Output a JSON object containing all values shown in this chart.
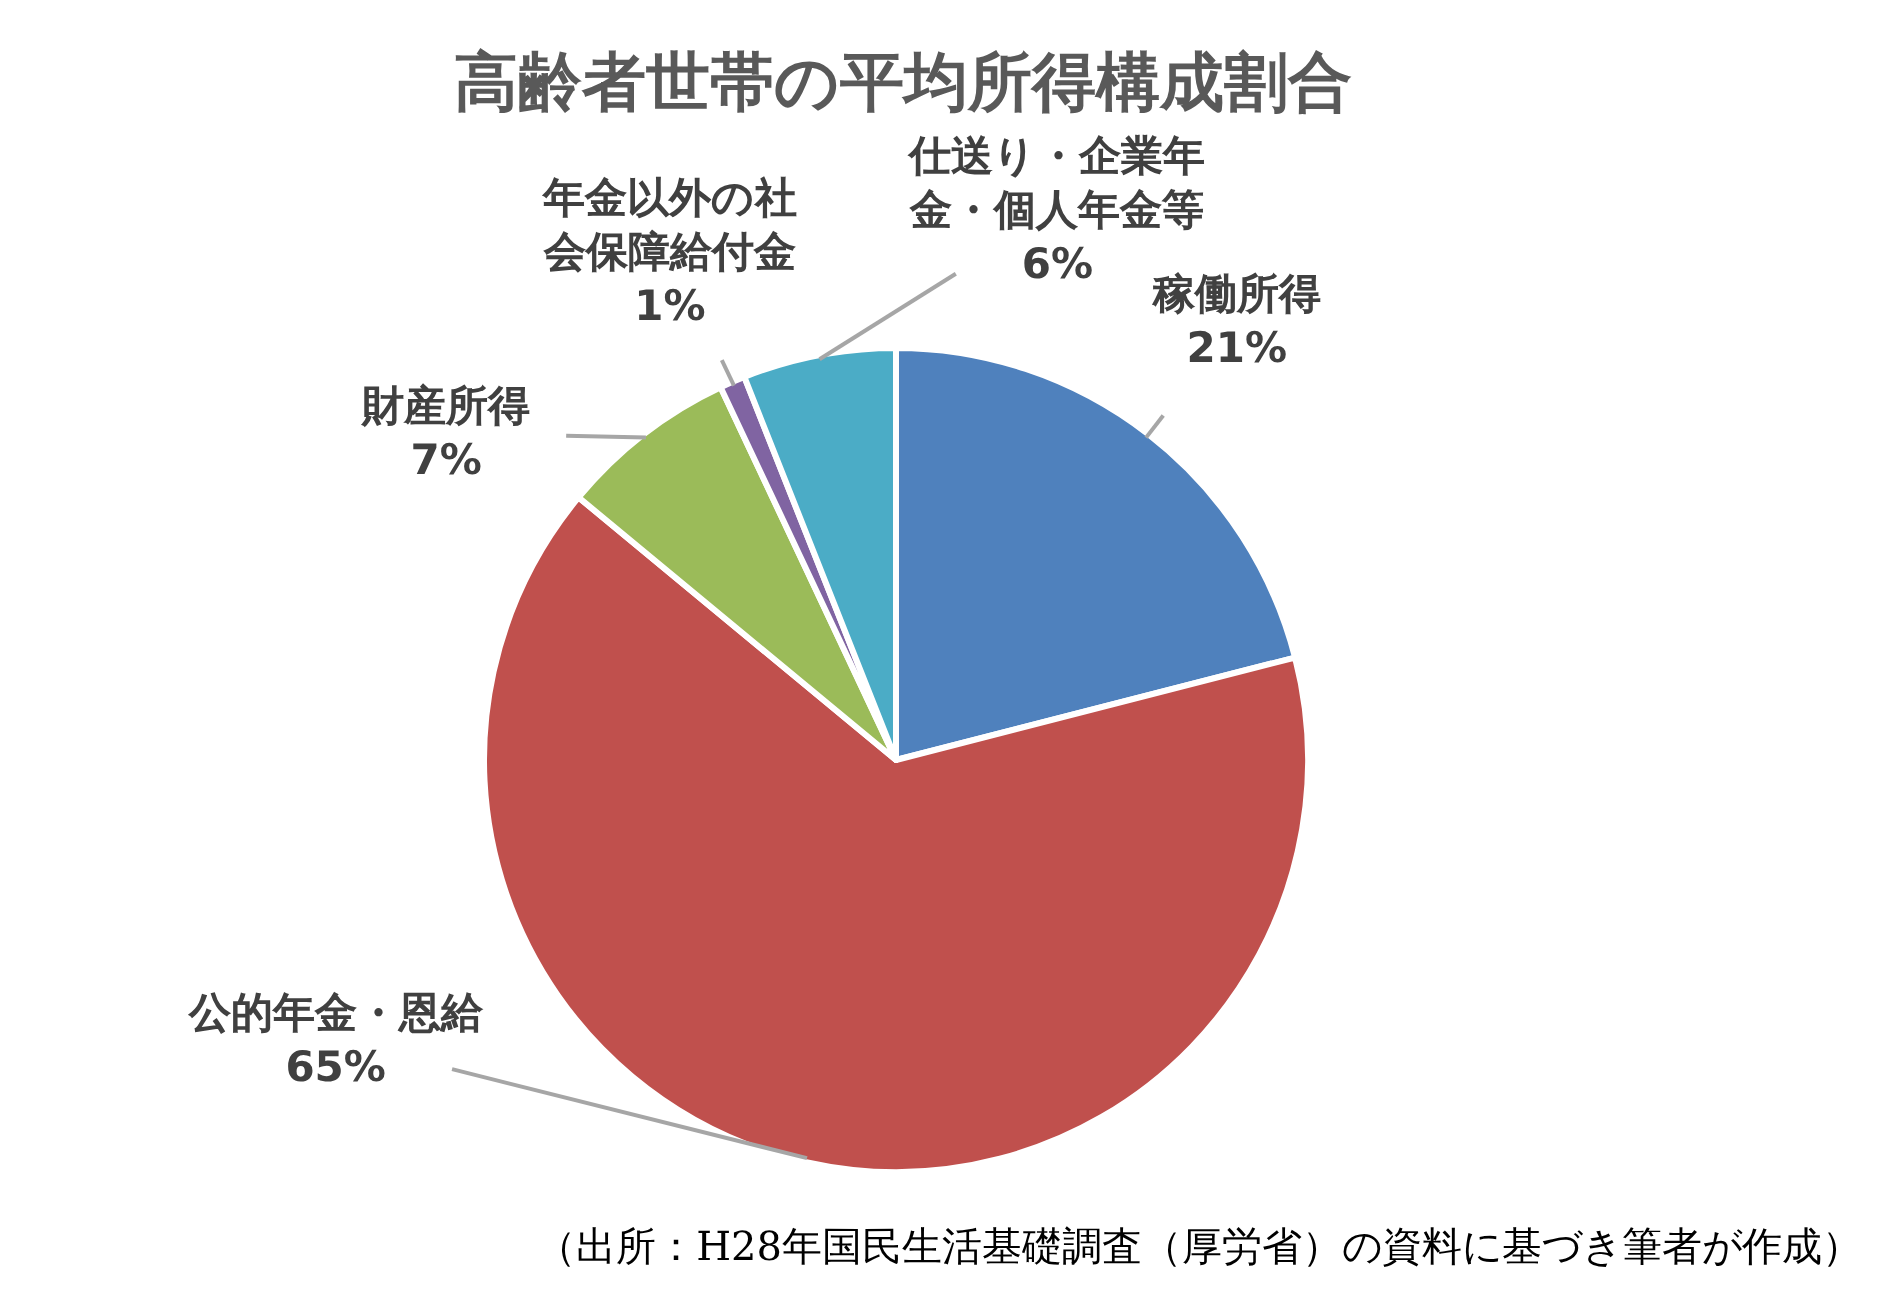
{
  "chart_data": {
    "type": "pie",
    "title": "高齢者世帯の平均所得構成割合",
    "categories": [
      "稼働所得",
      "公的年金・恩給",
      "財産所得",
      "年金以外の社会保障給付金",
      "仕送り・企業年金・個人年金等"
    ],
    "values": [
      21,
      65,
      7,
      1,
      6
    ],
    "value_labels": [
      "21%",
      "65%",
      "7%",
      "1%",
      "6%"
    ],
    "colors": [
      "#4f81bd",
      "#c0504d",
      "#9bbb59",
      "#8064a2",
      "#4bacc6"
    ],
    "annotations": [
      "（出所：H28年国民生活基礎調査（厚労省）の資料に基づき筆者が作成）"
    ]
  }
}
